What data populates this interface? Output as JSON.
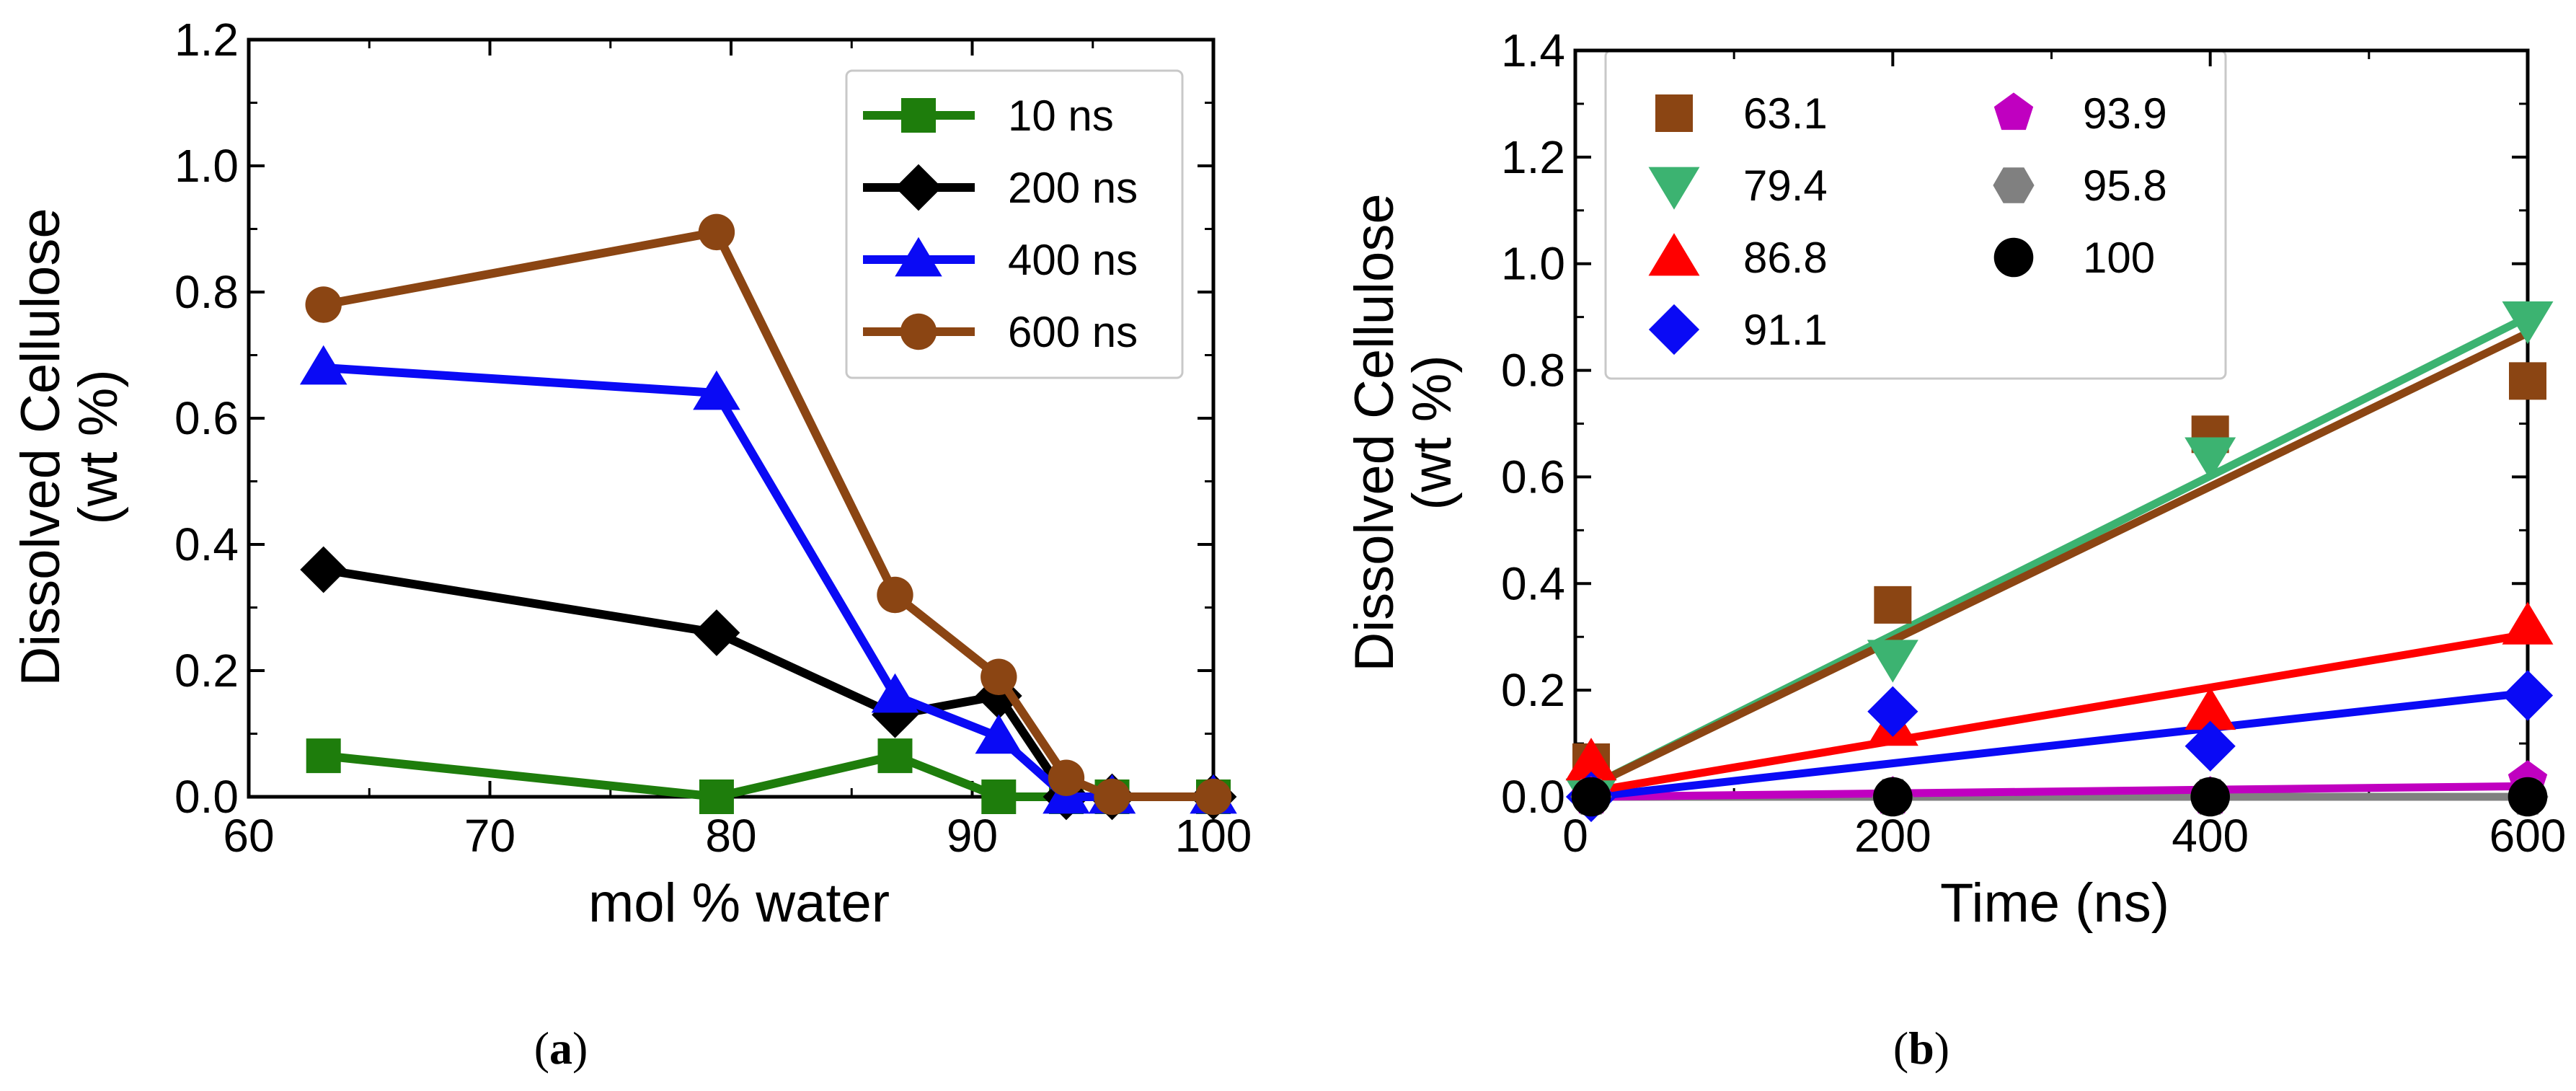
{
  "chart_data": [
    {
      "type": "line",
      "caption_open": "(",
      "caption_letter": "a",
      "caption_close": ")",
      "title": "",
      "xlabel": "mol % water",
      "ylabel_line1": "Dissolved Cellulose",
      "ylabel_line2": "(wt %)",
      "xlim": [
        60,
        100
      ],
      "ylim": [
        0,
        1.2
      ],
      "xticks": [
        60,
        70,
        80,
        90,
        100
      ],
      "yticks": [
        0.0,
        0.2,
        0.4,
        0.6,
        0.8,
        1.0,
        1.2
      ],
      "x": [
        63.1,
        79.4,
        86.8,
        91.1,
        93.9,
        95.8,
        100
      ],
      "legend_position": "top-right",
      "series": [
        {
          "name": "10 ns",
          "color": "#1e7d0c",
          "marker": "square",
          "values": [
            0.065,
            0.0,
            0.065,
            0.0,
            0.0,
            0.0,
            0.0
          ]
        },
        {
          "name": "200 ns",
          "color": "#000000",
          "marker": "diamond",
          "values": [
            0.36,
            0.26,
            0.13,
            0.16,
            0.0,
            0.0,
            0.0
          ]
        },
        {
          "name": "400 ns",
          "color": "#0a0af5",
          "marker": "triangle",
          "values": [
            0.68,
            0.64,
            0.16,
            0.095,
            0.0,
            0.0,
            0.0
          ]
        },
        {
          "name": "600 ns",
          "color": "#8b4513",
          "marker": "circle",
          "values": [
            0.78,
            0.895,
            0.32,
            0.19,
            0.03,
            0.0,
            0.0
          ]
        }
      ]
    },
    {
      "type": "scatter",
      "caption_open": "(",
      "caption_letter": "b",
      "caption_close": ")",
      "title": "",
      "xlabel": "Time (ns)",
      "ylabel_line1": "Dissolved Cellulose",
      "ylabel_line2": "(wt %)",
      "xlim": [
        0,
        600
      ],
      "ylim": [
        0,
        1.4
      ],
      "xticks": [
        0,
        200,
        400,
        600
      ],
      "yticks": [
        0.0,
        0.2,
        0.4,
        0.6,
        0.8,
        1.0,
        1.2,
        1.4
      ],
      "x": [
        10,
        200,
        400,
        600
      ],
      "legend_position": "top-left",
      "series": [
        {
          "name": "63.1",
          "color": "#8b4513",
          "marker": "square",
          "values": [
            0.065,
            0.36,
            0.68,
            0.78
          ],
          "fit": [
            0.02,
            0.87
          ]
        },
        {
          "name": "79.4",
          "color": "#3cb371",
          "marker": "triangle-down",
          "values": [
            0.0,
            0.26,
            0.64,
            0.895
          ],
          "fit": [
            0.02,
            0.9
          ]
        },
        {
          "name": "86.8",
          "color": "#ff0000",
          "marker": "triangle",
          "values": [
            0.065,
            0.13,
            0.16,
            0.32
          ],
          "fit": [
            0.01,
            0.305
          ]
        },
        {
          "name": "91.1",
          "color": "#0a0af5",
          "marker": "diamond",
          "values": [
            0.0,
            0.16,
            0.095,
            0.19
          ],
          "fit": [
            0.0,
            0.195
          ]
        },
        {
          "name": "93.9",
          "color": "#c000c0",
          "marker": "pentagon",
          "values": [
            0.0,
            0.0,
            0.0,
            0.03
          ],
          "fit": [
            0.0,
            0.02
          ]
        },
        {
          "name": "95.8",
          "color": "#808080",
          "marker": "hexagon",
          "values": [
            0.0,
            0.0,
            0.0,
            0.0
          ],
          "fit": [
            0.0,
            0.0
          ]
        },
        {
          "name": "100",
          "color": "#000000",
          "marker": "circle",
          "values": [
            0.0,
            0.0,
            0.0,
            0.0
          ],
          "fit": [
            0.0,
            0.0
          ]
        }
      ]
    }
  ]
}
